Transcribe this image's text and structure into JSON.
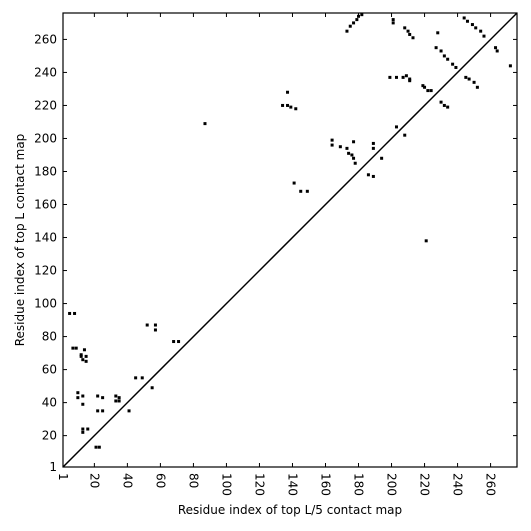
{
  "chart_data": {
    "type": "scatter",
    "xlabel": "Residue index of top L/5 contact map",
    "ylabel": "Residue index of top L contact map",
    "xlim": [
      1,
      276
    ],
    "ylim": [
      1,
      276
    ],
    "xticks": [
      1,
      20,
      40,
      60,
      80,
      100,
      120,
      140,
      160,
      180,
      200,
      220,
      240,
      260
    ],
    "yticks": [
      1,
      20,
      40,
      60,
      80,
      100,
      120,
      140,
      160,
      180,
      200,
      220,
      240,
      260
    ],
    "diagonal": true,
    "color": "#000000",
    "x": [
      5,
      8,
      7,
      9,
      14,
      12,
      12,
      15,
      13,
      15,
      10,
      10,
      13,
      13,
      13,
      13,
      16,
      21,
      23,
      22,
      25,
      22,
      25,
      33,
      35,
      33,
      35,
      41,
      45,
      49,
      52,
      57,
      57,
      55,
      68,
      71,
      87,
      137,
      134,
      137,
      139,
      142,
      141,
      145,
      149,
      164,
      164,
      169,
      173,
      174,
      176,
      177,
      178,
      177,
      186,
      189,
      189,
      189,
      194,
      203,
      208,
      221,
      173,
      175,
      177,
      179,
      180,
      182,
      201,
      201,
      208,
      210,
      211,
      213,
      199,
      203,
      207,
      209,
      211,
      211,
      219,
      220,
      222,
      224,
      227,
      230,
      232,
      234,
      237,
      239,
      228,
      230,
      232,
      234,
      244,
      246,
      249,
      251,
      254,
      256,
      245,
      247,
      250,
      252,
      263,
      264,
      272
    ],
    "values": [
      94,
      94,
      73,
      73,
      72,
      69,
      68,
      68,
      66,
      65,
      46,
      43,
      44,
      39,
      24,
      22,
      24,
      13,
      13,
      44,
      43,
      35,
      35,
      44,
      43,
      41,
      41,
      35,
      55,
      55,
      87,
      87,
      84,
      49,
      77,
      77,
      209,
      228,
      220,
      220,
      219,
      218,
      173,
      168,
      168,
      199,
      196,
      195,
      194,
      191,
      190,
      188,
      185,
      198,
      178,
      177,
      197,
      194,
      188,
      207,
      202,
      138,
      265,
      268,
      270,
      272,
      274,
      275,
      272,
      270,
      267,
      265,
      263,
      261,
      237,
      237,
      237,
      238,
      236,
      235,
      232,
      231,
      229,
      229,
      255,
      253,
      250,
      248,
      245,
      243,
      264,
      222,
      220,
      219,
      273,
      271,
      269,
      267,
      265,
      262,
      237,
      236,
      234,
      231,
      255,
      253,
      244
    ]
  }
}
